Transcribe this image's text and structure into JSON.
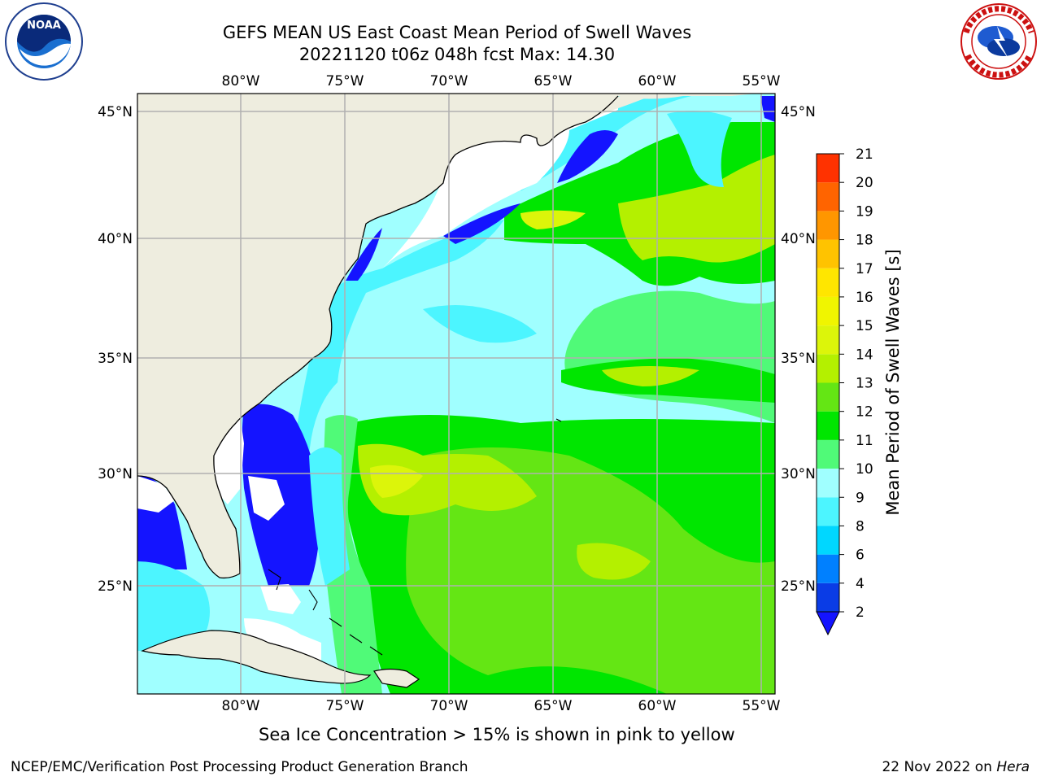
{
  "header": {
    "title": "GEFS MEAN US East Coast Mean Period of Swell Waves",
    "subtitle": "20221120 t06z 048h fcst   Max: 14.30"
  },
  "logos": {
    "left": "NOAA",
    "right": "NATIONAL WEATHER SERVICE"
  },
  "map": {
    "lon_labels": [
      "80°W",
      "75°W",
      "70°W",
      "65°W",
      "60°W",
      "55°W"
    ],
    "lat_labels": [
      "45°N",
      "40°N",
      "35°N",
      "30°N",
      "25°N"
    ],
    "colors": {
      "land": "#eeeddf",
      "ice_mask": "#ffffff",
      "grid": "#b0b0b0",
      "coast": "#000000"
    }
  },
  "colorbar": {
    "label": "Mean Period of Swell Waves [s]",
    "ticks": [
      "2",
      "4",
      "6",
      "8",
      "9",
      "10",
      "11",
      "12",
      "13",
      "14",
      "15",
      "16",
      "17",
      "18",
      "19",
      "20",
      "21"
    ],
    "colors": [
      "#0a3ce6",
      "#0080ff",
      "#00d7ff",
      "#4cf5ff",
      "#a0ffff",
      "#50fa78",
      "#00e600",
      "#64e614",
      "#b4f000",
      "#dcf50a",
      "#f0f500",
      "#ffe600",
      "#ffc300",
      "#ff9600",
      "#ff6400",
      "#ff3200",
      "#ff0000"
    ],
    "under_color": "#1414ff"
  },
  "footer": {
    "note": "Sea Ice Concentration > 15% is shown in pink to yellow",
    "credit": "NCEP/EMC/Verification Post Processing Product Generation Branch",
    "date": "22 Nov 2022 on",
    "host": "Hera"
  }
}
